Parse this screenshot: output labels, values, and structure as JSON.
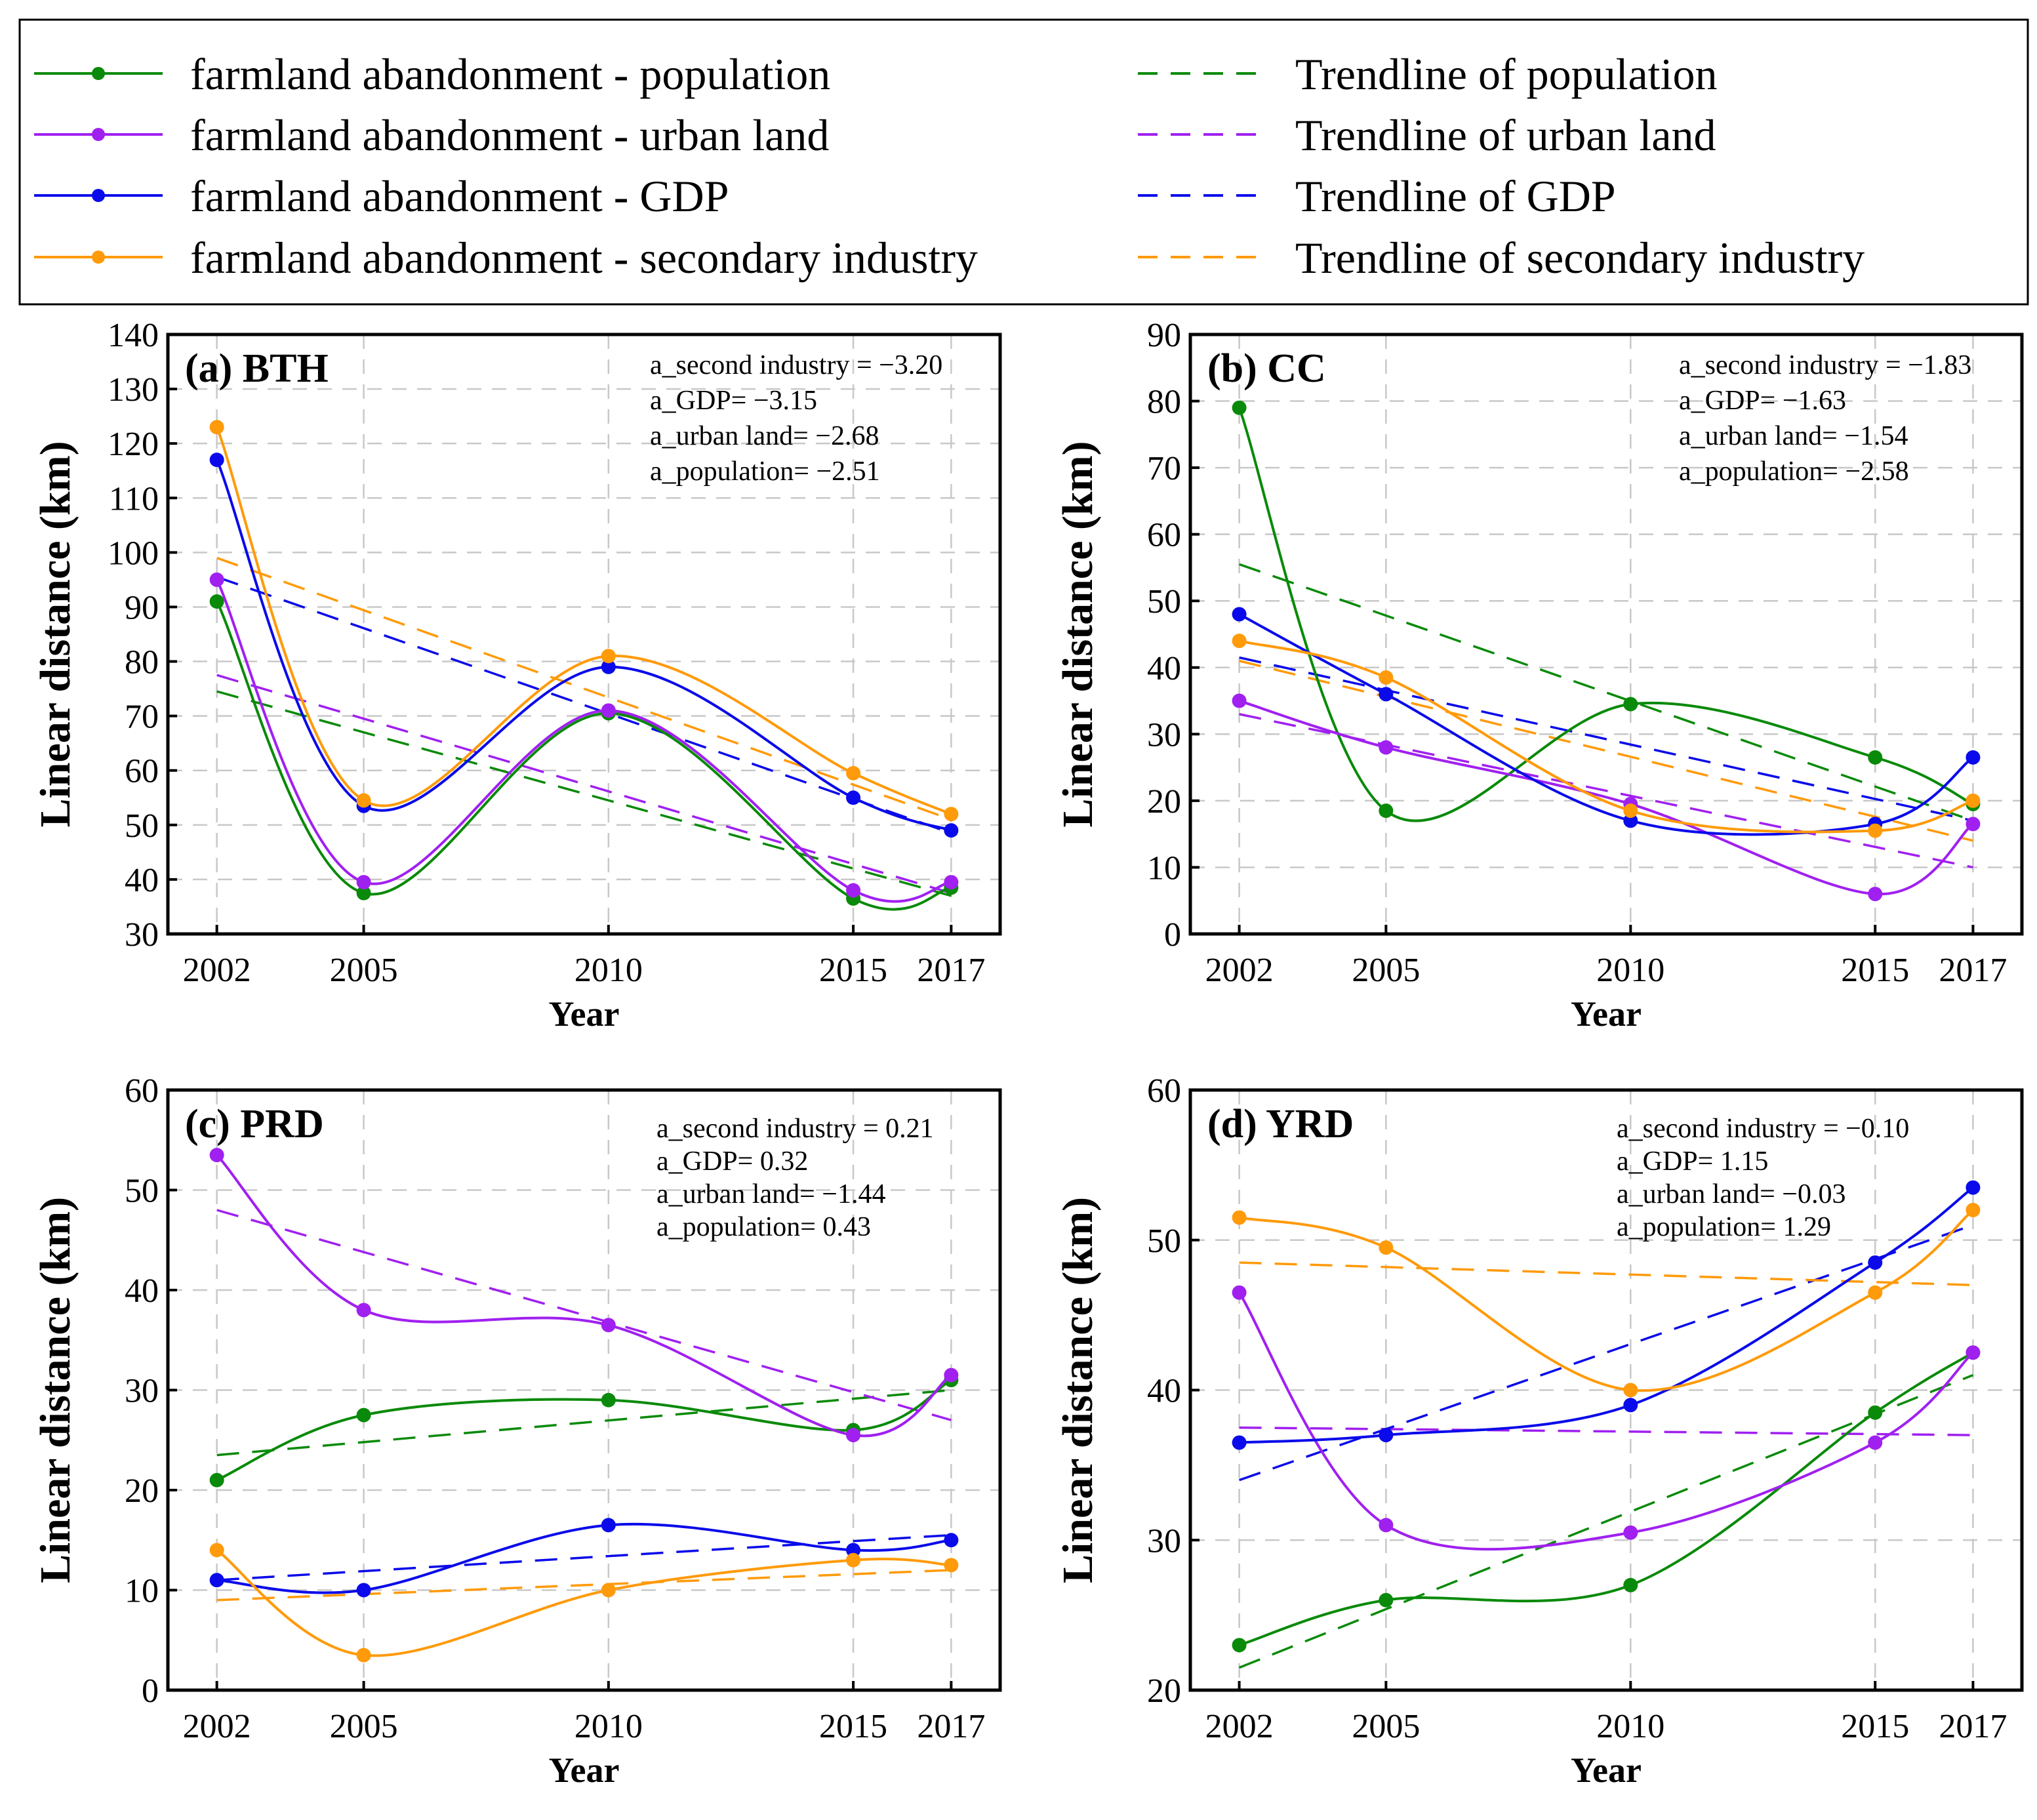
{
  "legend": {
    "items": [
      {
        "key": "population",
        "label": "farmland abandonment - population",
        "style": "solid",
        "color": "#0a8a0a"
      },
      {
        "key": "urban",
        "label": "farmland abandonment - urban land",
        "style": "solid",
        "color": "#a020f0"
      },
      {
        "key": "gdp",
        "label": "farmland abandonment - GDP",
        "style": "solid",
        "color": "#0a0aea"
      },
      {
        "key": "secondary",
        "label": "farmland abandonment - secondary industry",
        "style": "solid",
        "color": "#ff9a0a"
      },
      {
        "key": "population",
        "label": "Trendline of population",
        "style": "dashed",
        "color": "#0a8a0a"
      },
      {
        "key": "urban",
        "label": "Trendline of urban land",
        "style": "dashed",
        "color": "#a020f0"
      },
      {
        "key": "gdp",
        "label": "Trendline of GDP",
        "style": "dashed",
        "color": "#0a0aea"
      },
      {
        "key": "secondary",
        "label": "Trendline of secondary industry",
        "style": "dashed",
        "color": "#ff9a0a"
      }
    ]
  },
  "colors": {
    "population": "#0a8a0a",
    "urban": "#a020f0",
    "gdp": "#0a0aea",
    "secondary": "#ff9a0a",
    "grid": "#c8c8c8"
  },
  "chart_data": [
    {
      "type": "line",
      "title": "(a) BTH",
      "xlabel": "Year",
      "ylabel": "Linear distance (km)",
      "x": [
        2002,
        2005,
        2010,
        2015,
        2017
      ],
      "xticks": [
        "2002",
        "2005",
        "2010",
        "2015",
        "2017"
      ],
      "xlim": [
        2001,
        2018
      ],
      "ylim": [
        30,
        140
      ],
      "yticks": [
        30,
        40,
        50,
        60,
        70,
        80,
        90,
        100,
        110,
        120,
        130,
        140
      ],
      "series": [
        {
          "key": "population",
          "name": "farmland abandonment - population",
          "values": [
            91,
            37.5,
            70.5,
            36.5,
            38.5
          ]
        },
        {
          "key": "urban",
          "name": "farmland abandonment - urban land",
          "values": [
            95,
            39.5,
            71,
            38,
            39.5
          ]
        },
        {
          "key": "gdp",
          "name": "farmland abandonment - GDP",
          "values": [
            117,
            53.5,
            79,
            55,
            49
          ]
        },
        {
          "key": "secondary",
          "name": "farmland abandonment - secondary industry",
          "values": [
            123,
            54.5,
            81,
            59.5,
            52
          ]
        }
      ],
      "trendlines": [
        {
          "key": "population",
          "name": "Trendline of population",
          "start": [
            2002,
            74.5
          ],
          "end": [
            2017,
            37
          ]
        },
        {
          "key": "urban",
          "name": "Trendline of urban land",
          "start": [
            2002,
            77.5
          ],
          "end": [
            2017,
            37.5
          ]
        },
        {
          "key": "gdp",
          "name": "Trendline of GDP",
          "start": [
            2002,
            95.5
          ],
          "end": [
            2017,
            48.5
          ]
        },
        {
          "key": "secondary",
          "name": "Trendline of secondary industry",
          "start": [
            2002,
            99
          ],
          "end": [
            2017,
            51
          ]
        }
      ],
      "annotations": [
        "a_second industry = −3.20",
        "a_GDP= −3.15",
        "a_urban land= −2.68",
        "a_population= −2.51"
      ]
    },
    {
      "type": "line",
      "title": "(b) CC",
      "xlabel": "Year",
      "ylabel": "Linear distance (km)",
      "x": [
        2002,
        2005,
        2010,
        2015,
        2017
      ],
      "xticks": [
        "2002",
        "2005",
        "2010",
        "2015",
        "2017"
      ],
      "xlim": [
        2001,
        2018
      ],
      "ylim": [
        0,
        90
      ],
      "yticks": [
        0,
        10,
        20,
        30,
        40,
        50,
        60,
        70,
        80,
        90
      ],
      "series": [
        {
          "key": "population",
          "name": "farmland abandonment - population",
          "values": [
            79,
            18.5,
            34.5,
            26.5,
            19.5
          ]
        },
        {
          "key": "urban",
          "name": "farmland abandonment - urban land",
          "values": [
            35,
            28,
            19.5,
            6,
            16.5
          ]
        },
        {
          "key": "gdp",
          "name": "farmland abandonment - GDP",
          "values": [
            48,
            36,
            17,
            16.5,
            26.5
          ]
        },
        {
          "key": "secondary",
          "name": "farmland abandonment - secondary industry",
          "values": [
            44,
            38.5,
            18.5,
            15.5,
            20
          ]
        }
      ],
      "trendlines": [
        {
          "key": "population",
          "name": "Trendline of population",
          "start": [
            2002,
            55.5
          ],
          "end": [
            2017,
            17
          ]
        },
        {
          "key": "urban",
          "name": "Trendline of urban land",
          "start": [
            2002,
            33
          ],
          "end": [
            2017,
            10
          ]
        },
        {
          "key": "gdp",
          "name": "Trendline of GDP",
          "start": [
            2002,
            41.5
          ],
          "end": [
            2017,
            17
          ]
        },
        {
          "key": "secondary",
          "name": "Trendline of secondary industry",
          "start": [
            2002,
            41
          ],
          "end": [
            2017,
            14
          ]
        }
      ],
      "annotations": [
        "a_second industry = −1.83",
        "a_GDP= −1.63",
        "a_urban land= −1.54",
        "a_population= −2.58"
      ]
    },
    {
      "type": "line",
      "title": "(c) PRD",
      "xlabel": "Year",
      "ylabel": "Linear distance (km)",
      "x": [
        2002,
        2005,
        2010,
        2015,
        2017
      ],
      "xticks": [
        "2002",
        "2005",
        "2010",
        "2015",
        "2017"
      ],
      "xlim": [
        2001,
        2018
      ],
      "ylim": [
        0,
        60
      ],
      "yticks": [
        0,
        10,
        20,
        30,
        40,
        50,
        60
      ],
      "series": [
        {
          "key": "population",
          "name": "farmland abandonment - population",
          "values": [
            21,
            27.5,
            29,
            26,
            31
          ]
        },
        {
          "key": "urban",
          "name": "farmland abandonment - urban land",
          "values": [
            53.5,
            38,
            36.5,
            25.5,
            31.5
          ]
        },
        {
          "key": "gdp",
          "name": "farmland abandonment - GDP",
          "values": [
            11,
            10,
            16.5,
            14,
            15
          ]
        },
        {
          "key": "secondary",
          "name": "farmland abandonment - secondary industry",
          "values": [
            14,
            3.5,
            10,
            13,
            12.5
          ]
        }
      ],
      "trendlines": [
        {
          "key": "population",
          "name": "Trendline of population",
          "start": [
            2002,
            23.5
          ],
          "end": [
            2017,
            30
          ]
        },
        {
          "key": "urban",
          "name": "Trendline of urban land",
          "start": [
            2002,
            48
          ],
          "end": [
            2017,
            27
          ]
        },
        {
          "key": "gdp",
          "name": "Trendline of GDP",
          "start": [
            2002,
            11
          ],
          "end": [
            2017,
            15.5
          ]
        },
        {
          "key": "secondary",
          "name": "Trendline of secondary industry",
          "start": [
            2002,
            9
          ],
          "end": [
            2017,
            12
          ]
        }
      ],
      "annotations": [
        "a_second industry = 0.21",
        "a_GDP= 0.32",
        "a_urban land= −1.44",
        "a_population= 0.43"
      ]
    },
    {
      "type": "line",
      "title": "(d) YRD",
      "xlabel": "Year",
      "ylabel": "Linear distance (km)",
      "x": [
        2002,
        2005,
        2010,
        2015,
        2017
      ],
      "xticks": [
        "2002",
        "2005",
        "2010",
        "2015",
        "2017"
      ],
      "xlim": [
        2001,
        2018
      ],
      "ylim": [
        20,
        60
      ],
      "yticks": [
        20,
        30,
        40,
        50,
        60
      ],
      "series": [
        {
          "key": "population",
          "name": "farmland abandonment - population",
          "values": [
            23,
            26,
            27,
            38.5,
            42.5
          ]
        },
        {
          "key": "urban",
          "name": "farmland abandonment - urban land",
          "values": [
            46.5,
            31,
            30.5,
            36.5,
            42.5
          ]
        },
        {
          "key": "gdp",
          "name": "farmland abandonment - GDP",
          "values": [
            36.5,
            37,
            39,
            48.5,
            53.5
          ]
        },
        {
          "key": "secondary",
          "name": "farmland abandonment - secondary industry",
          "values": [
            51.5,
            49.5,
            40,
            46.5,
            52
          ]
        }
      ],
      "trendlines": [
        {
          "key": "population",
          "name": "Trendline of population",
          "start": [
            2002,
            21.5
          ],
          "end": [
            2017,
            41
          ]
        },
        {
          "key": "urban",
          "name": "Trendline of urban land",
          "start": [
            2002,
            37.5
          ],
          "end": [
            2017,
            37
          ]
        },
        {
          "key": "gdp",
          "name": "Trendline of GDP",
          "start": [
            2002,
            34
          ],
          "end": [
            2017,
            51
          ]
        },
        {
          "key": "secondary",
          "name": "Trendline of secondary industry",
          "start": [
            2002,
            48.5
          ],
          "end": [
            2017,
            47
          ]
        }
      ],
      "annotations": [
        "a_second industry = −0.10",
        "a_GDP= 1.15",
        "a_urban land= −0.03",
        "a_population= 1.29"
      ]
    }
  ]
}
